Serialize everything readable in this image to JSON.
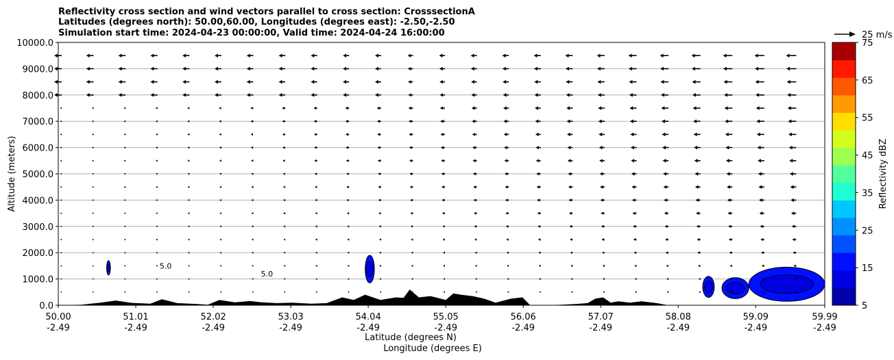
{
  "chart_data": {
    "type": "cross-section",
    "title_lines": [
      "Reflectivity cross section and wind vectors parallel to cross section: CrosssectionA",
      "Latitudes (degrees north): 50.00,60.00, Longitudes (degrees east): -2.50,-2.50",
      "Simulation start time: 2024-04-23 00:00:00, Valid time: 2024-04-24 16:00:00"
    ],
    "xlabel_lat": "Latitude (degrees N)",
    "xlabel_lon": "Longitude (degrees E)",
    "ylabel": "Altitude (meters)",
    "xlim": [
      50.0,
      59.99
    ],
    "ylim": [
      0,
      10000
    ],
    "x_ticks": [
      {
        "lat": "50.00",
        "lon": "-2.49",
        "value": 50.0
      },
      {
        "lat": "51.01",
        "lon": "-2.49",
        "value": 51.01
      },
      {
        "lat": "52.02",
        "lon": "-2.49",
        "value": 52.02
      },
      {
        "lat": "53.03",
        "lon": "-2.49",
        "value": 53.03
      },
      {
        "lat": "54.04",
        "lon": "-2.49",
        "value": 54.04
      },
      {
        "lat": "55.05",
        "lon": "-2.49",
        "value": 55.05
      },
      {
        "lat": "56.06",
        "lon": "-2.49",
        "value": 56.06
      },
      {
        "lat": "57.07",
        "lon": "-2.49",
        "value": 57.07
      },
      {
        "lat": "58.08",
        "lon": "-2.49",
        "value": 58.08
      },
      {
        "lat": "59.09",
        "lon": "-2.49",
        "value": 59.09
      },
      {
        "lat": "59.99",
        "lon": "-2.49",
        "value": 59.99
      }
    ],
    "y_ticks": [
      {
        "label": "0.0",
        "value": 0
      },
      {
        "label": "1000.0",
        "value": 1000
      },
      {
        "label": "2000.0",
        "value": 2000
      },
      {
        "label": "3000.0",
        "value": 3000
      },
      {
        "label": "4000.0",
        "value": 4000
      },
      {
        "label": "5000.0",
        "value": 5000
      },
      {
        "label": "6000.0",
        "value": 6000
      },
      {
        "label": "7000.0",
        "value": 7000
      },
      {
        "label": "8000.0",
        "value": 8000
      },
      {
        "label": "9000.0",
        "value": 9000
      },
      {
        "label": "10000.0",
        "value": 10000
      }
    ],
    "horizontal_grid": true,
    "colorbar": {
      "label": "Reflectivity dBZ",
      "min": 5,
      "max": 75,
      "tick_values": [
        5,
        15,
        25,
        35,
        45,
        55,
        65,
        75
      ],
      "tick_labels": [
        "5",
        "15",
        "25",
        "35",
        "45",
        "55",
        "65",
        "75"
      ],
      "colors": [
        "#0000a8",
        "#0000e0",
        "#0010ff",
        "#0050ff",
        "#0090ff",
        "#00c8ff",
        "#1effd2",
        "#52ff9e",
        "#9eff52",
        "#d2ff1e",
        "#ffde00",
        "#ff9a00",
        "#ff5800",
        "#ff1a00",
        "#a80000"
      ]
    },
    "quiver_key": {
      "label": "25 m/s",
      "speed": 25
    },
    "wind_vectors": {
      "direction": "westward (toward lower latitude, left)",
      "x_columns": 25,
      "levels_m": [
        500,
        1000,
        1500,
        2000,
        2500,
        3000,
        3500,
        4000,
        4500,
        5000,
        5500,
        6000,
        6500,
        7000,
        7500,
        8000,
        8500,
        9000,
        9500
      ],
      "note": "speeds increase with altitude and toward the north"
    },
    "reflectivity_regions": [
      {
        "lat_min": 50.63,
        "lat_max": 50.68,
        "alt_min": 1150,
        "alt_max": 1700,
        "dbz": 5
      },
      {
        "lat_min": 54.0,
        "lat_max": 54.12,
        "alt_min": 850,
        "alt_max": 1900,
        "dbz": 5
      },
      {
        "lat_min": 58.4,
        "lat_max": 58.55,
        "alt_min": 300,
        "alt_max": 1100,
        "dbz": 5
      },
      {
        "lat_min": 58.65,
        "lat_max": 59.0,
        "alt_min": 250,
        "alt_max": 1050,
        "dbz": 5
      },
      {
        "lat_min": 59.0,
        "lat_max": 59.99,
        "alt_min": 150,
        "alt_max": 1450,
        "dbz": 5
      }
    ],
    "contour_labels": [
      {
        "text": "5.0",
        "lat": 51.4,
        "alt": 1500
      },
      {
        "text": "5.0",
        "lat": 52.72,
        "alt": 1200
      }
    ],
    "terrain": {
      "description": "black filled orography along the bottom",
      "points": [
        [
          50.0,
          0
        ],
        [
          50.3,
          20
        ],
        [
          50.55,
          100
        ],
        [
          50.75,
          180
        ],
        [
          50.95,
          90
        ],
        [
          51.2,
          60
        ],
        [
          51.35,
          230
        ],
        [
          51.55,
          80
        ],
        [
          51.8,
          50
        ],
        [
          51.95,
          20
        ],
        [
          52.1,
          200
        ],
        [
          52.3,
          110
        ],
        [
          52.5,
          160
        ],
        [
          52.65,
          110
        ],
        [
          52.85,
          80
        ],
        [
          53.05,
          100
        ],
        [
          53.3,
          60
        ],
        [
          53.5,
          80
        ],
        [
          53.7,
          300
        ],
        [
          53.85,
          200
        ],
        [
          54.0,
          400
        ],
        [
          54.2,
          200
        ],
        [
          54.4,
          300
        ],
        [
          54.5,
          280
        ],
        [
          54.58,
          600
        ],
        [
          54.7,
          300
        ],
        [
          54.85,
          350
        ],
        [
          55.05,
          200
        ],
        [
          55.15,
          450
        ],
        [
          55.25,
          400
        ],
        [
          55.4,
          350
        ],
        [
          55.55,
          250
        ],
        [
          55.7,
          100
        ],
        [
          55.9,
          250
        ],
        [
          56.05,
          300
        ],
        [
          56.15,
          0
        ],
        [
          56.35,
          0
        ],
        [
          56.55,
          20
        ],
        [
          56.75,
          50
        ],
        [
          56.9,
          80
        ],
        [
          57.0,
          250
        ],
        [
          57.1,
          300
        ],
        [
          57.2,
          100
        ],
        [
          57.3,
          150
        ],
        [
          57.45,
          100
        ],
        [
          57.6,
          150
        ],
        [
          57.8,
          80
        ],
        [
          57.95,
          0
        ],
        [
          59.99,
          0
        ]
      ]
    }
  }
}
